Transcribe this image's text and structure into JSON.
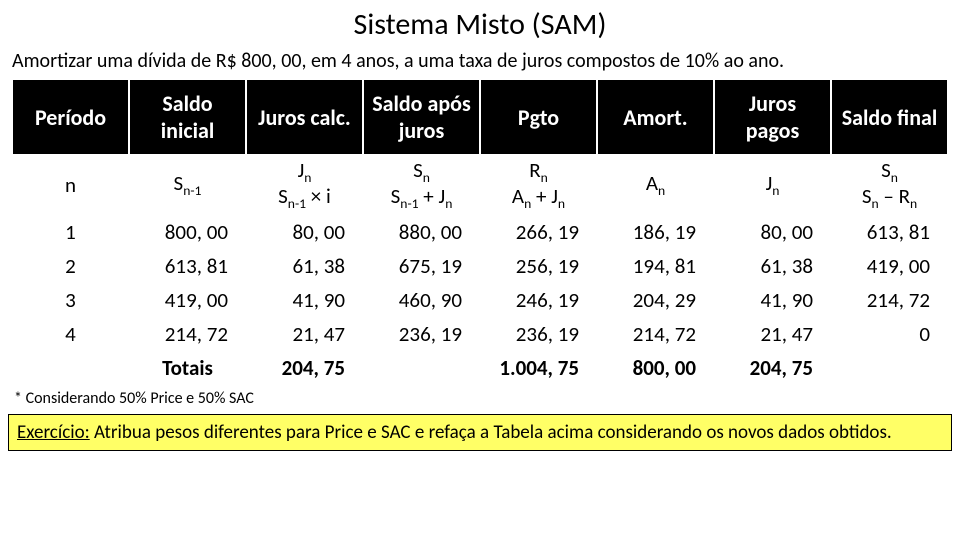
{
  "title": "Sistema Misto (SAM)",
  "subtitle": "Amortizar uma dívida de R$ 800, 00, em 4 anos, a uma taxa de juros compostos de 10% ao ano.",
  "table": {
    "header_bg": "#000000",
    "header_fg": "#ffffff",
    "columns": [
      "Período",
      "Saldo inicial",
      "Juros calc.",
      "Saldo após juros",
      "Pgto",
      "Amort.",
      "Juros pagos",
      "Saldo final"
    ],
    "formula_row": {
      "periodo": "n",
      "saldo_inicial_sym": "S",
      "saldo_inicial_sub": "n-1",
      "juros_calc_l1_sym": "J",
      "juros_calc_l1_sub": "n",
      "juros_calc_l2_sym": "S",
      "juros_calc_l2_sub": "n-1",
      "juros_calc_l2_tail": " × i",
      "saldo_apos_l1_sym": "S",
      "saldo_apos_l1_sub": "n",
      "saldo_apos_l2a_sym": "S",
      "saldo_apos_l2a_sub": "n-1",
      "saldo_apos_l2_plus": " + J",
      "saldo_apos_l2b_sub": "n",
      "pgto_l1_sym": "R",
      "pgto_l1_sub": "n",
      "pgto_l2a_sym": "A",
      "pgto_l2a_sub": "n",
      "pgto_l2_plus": " + J",
      "pgto_l2b_sub": "n",
      "amort_sym": "A",
      "amort_sub": "n",
      "juros_pagos_sym": "J",
      "juros_pagos_sub": "n",
      "saldo_final_l1_sym": "S",
      "saldo_final_l1_sub": "n",
      "saldo_final_l2a_sym": "S",
      "saldo_final_l2a_sub": "n",
      "saldo_final_l2_minus": " – R",
      "saldo_final_l2b_sub": "n"
    },
    "rows": [
      {
        "p": "1",
        "si": "800, 00",
        "jc": "80, 00",
        "saj": "880, 00",
        "pg": "266, 19",
        "am": "186, 19",
        "jp": "80, 00",
        "sf": "613, 81"
      },
      {
        "p": "2",
        "si": "613, 81",
        "jc": "61, 38",
        "saj": "675, 19",
        "pg": "256, 19",
        "am": "194, 81",
        "jp": "61, 38",
        "sf": "419, 00"
      },
      {
        "p": "3",
        "si": "419, 00",
        "jc": "41, 90",
        "saj": "460, 90",
        "pg": "246, 19",
        "am": "204, 29",
        "jp": "41, 90",
        "sf": "214, 72"
      },
      {
        "p": "4",
        "si": "214, 72",
        "jc": "21, 47",
        "saj": "236, 19",
        "pg": "236, 19",
        "am": "214, 72",
        "jp": "21, 47",
        "sf": "0"
      }
    ],
    "totals": {
      "label": "Totais",
      "jc": "204, 75",
      "pg": "1.004, 75",
      "am": "800, 00",
      "jp": "204, 75"
    }
  },
  "footnote": "* Considerando 50% Price e 50% SAC",
  "exercise_label": "Exercício:",
  "exercise_text": " Atribua pesos diferentes para Price e SAC e refaça a Tabela acima considerando os novos dados obtidos.",
  "exercise_bg": "#ffff66"
}
